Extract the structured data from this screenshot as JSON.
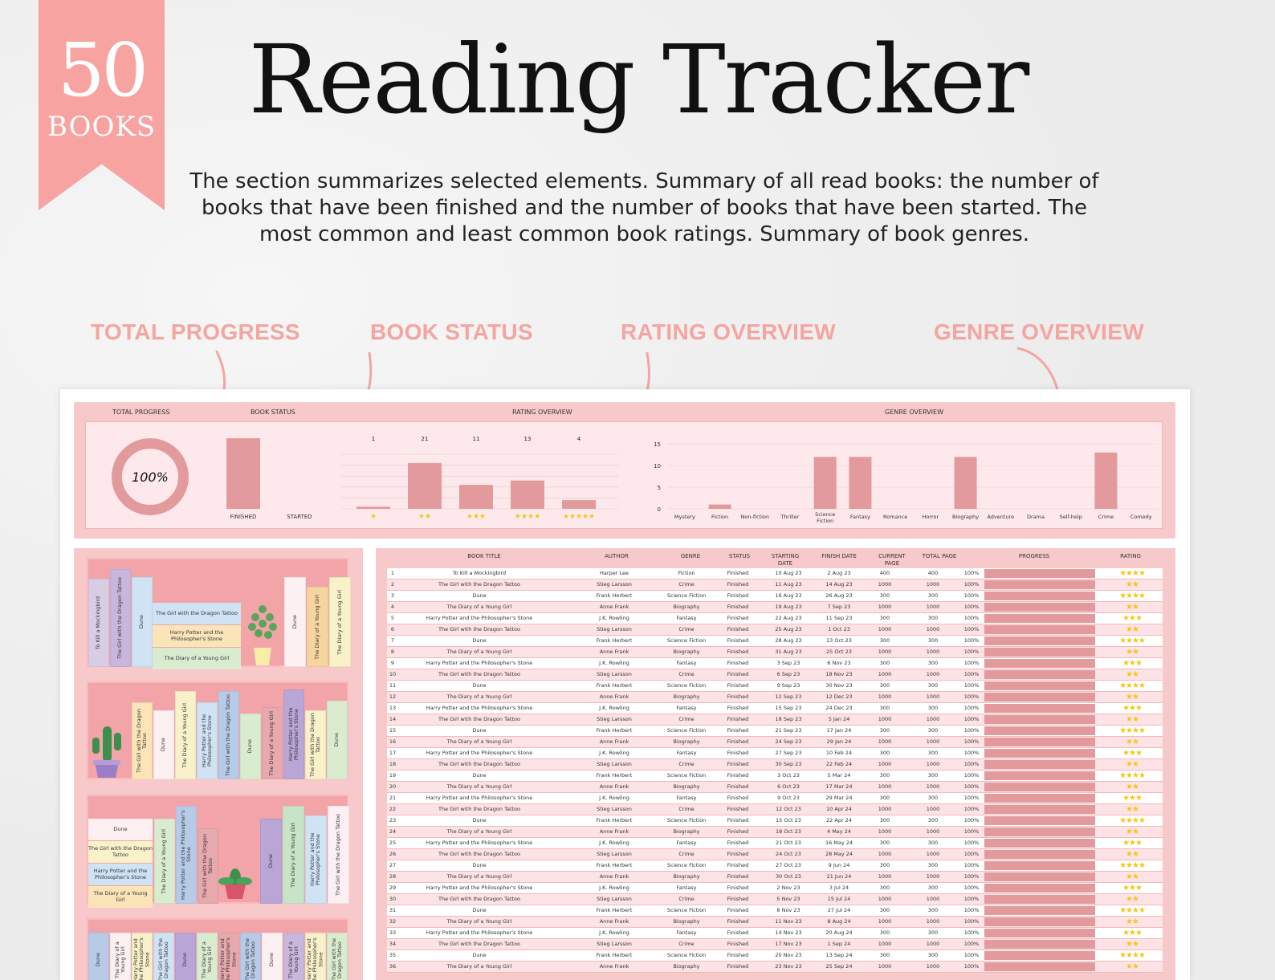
{
  "ribbon": {
    "number": "50",
    "label": "BOOKS"
  },
  "title": "Reading Tracker",
  "subtitle": "The section summarizes selected elements. Summary of all read books: the number of books that have been finished and the number of books that have been started. The most common and least common book ratings. Summary of book genres.",
  "callouts": {
    "total_progress": "TOTAL PROGRESS",
    "book_status": "BOOK STATUS",
    "rating_overview": "RATING OVERVIEW",
    "genre_overview": "GENRE OVERVIEW"
  },
  "dashboard": {
    "total_progress_label": "TOTAL PROGRESS",
    "book_status_label": "BOOK STATUS",
    "rating_overview_label": "RATING OVERVIEW",
    "genre_overview_label": "GENRE OVERVIEW",
    "progress_value": "100%",
    "colors": {
      "bar": "#e39a9c",
      "panel": "#f7c9cb",
      "inner": "#fde9ec",
      "accent": "#f7a3a1",
      "star": "#f5c518"
    }
  },
  "chart_data": [
    {
      "type": "bar",
      "categories": [
        "FINISHED",
        "STARTED"
      ],
      "values": [
        50,
        0
      ],
      "title": "BOOK STATUS"
    },
    {
      "type": "bar",
      "categories": [
        "★",
        "★★",
        "★★★",
        "★★★★",
        "★★★★★"
      ],
      "values": [
        1,
        21,
        11,
        13,
        4
      ],
      "data_labels": [
        "1",
        "21",
        "11",
        "13",
        "4"
      ],
      "title": "RATING OVERVIEW",
      "ylim": [
        0,
        25
      ]
    },
    {
      "type": "bar",
      "categories": [
        "Mystery",
        "Fiction",
        "Non-fiction",
        "Thriller",
        "Science Fiction",
        "Fantasy",
        "Romance",
        "Horror",
        "Biography",
        "Adventure",
        "Drama",
        "Self-help",
        "Crime",
        "Comedy"
      ],
      "values": [
        0,
        1,
        0,
        0,
        12,
        12,
        0,
        0,
        12,
        0,
        0,
        0,
        13,
        0
      ],
      "yticks": [
        "15",
        "10",
        "5",
        "0"
      ],
      "title": "GENRE OVERVIEW",
      "ylim": [
        0,
        15
      ],
      "grid": true
    }
  ],
  "table": {
    "headers": {
      "title": "BOOK TITLE",
      "author": "AUTHOR",
      "genre": "GENRE",
      "status": "STATUS",
      "start": "STARTING DATE",
      "finish": "FINISH DATE",
      "current": "CURRENT PAGE",
      "total": "TOTAL PAGE",
      "progress": "PROGRESS",
      "rating": "RATING"
    },
    "rows": [
      {
        "n": "1",
        "title": "To Kill a Mockingbird",
        "author": "Harper Lee",
        "genre": "Fiction",
        "status": "Finished",
        "start": "10 Aug 23",
        "finish": "2 Aug 23",
        "current": "400",
        "total": "400",
        "pct": "100%",
        "stars": "★★★★"
      },
      {
        "n": "2",
        "title": "The Girl with the Dragon Tattoo",
        "author": "Stieg Larsson",
        "genre": "Crime",
        "status": "Finished",
        "start": "11 Aug 23",
        "finish": "14 Aug 23",
        "current": "1000",
        "total": "1000",
        "pct": "100%",
        "stars": "★★"
      },
      {
        "n": "3",
        "title": "Dune",
        "author": "Frank Herbert",
        "genre": "Science Fiction",
        "status": "Finished",
        "start": "16 Aug 23",
        "finish": "26 Aug 23",
        "current": "300",
        "total": "300",
        "pct": "100%",
        "stars": "★★★★"
      },
      {
        "n": "4",
        "title": "The Diary of a Young Girl",
        "author": "Anne Frank",
        "genre": "Biography",
        "status": "Finished",
        "start": "19 Aug 23",
        "finish": "7 Sep 23",
        "current": "1000",
        "total": "1000",
        "pct": "100%",
        "stars": "★★"
      },
      {
        "n": "5",
        "title": "Harry Potter and the Philosopher's Stone",
        "author": "J.K. Rowling",
        "genre": "Fantasy",
        "status": "Finished",
        "start": "22 Aug 23",
        "finish": "11 Sep 23",
        "current": "300",
        "total": "300",
        "pct": "100%",
        "stars": "★★★"
      },
      {
        "n": "6",
        "title": "The Girl with the Dragon Tattoo",
        "author": "Stieg Larsson",
        "genre": "Crime",
        "status": "Finished",
        "start": "25 Aug 23",
        "finish": "1 Oct 23",
        "current": "1000",
        "total": "1000",
        "pct": "100%",
        "stars": "★★"
      },
      {
        "n": "7",
        "title": "Dune",
        "author": "Frank Herbert",
        "genre": "Science Fiction",
        "status": "Finished",
        "start": "28 Aug 23",
        "finish": "13 Oct 23",
        "current": "300",
        "total": "300",
        "pct": "100%",
        "stars": "★★★★"
      },
      {
        "n": "8",
        "title": "The Diary of a Young Girl",
        "author": "Anne Frank",
        "genre": "Biography",
        "status": "Finished",
        "start": "31 Aug 23",
        "finish": "25 Oct 23",
        "current": "1000",
        "total": "1000",
        "pct": "100%",
        "stars": "★★"
      },
      {
        "n": "9",
        "title": "Harry Potter and the Philosopher's Stone",
        "author": "J.K. Rowling",
        "genre": "Fantasy",
        "status": "Finished",
        "start": "3 Sep 23",
        "finish": "6 Nov 23",
        "current": "300",
        "total": "300",
        "pct": "100%",
        "stars": "★★★"
      },
      {
        "n": "10",
        "title": "The Girl with the Dragon Tattoo",
        "author": "Stieg Larsson",
        "genre": "Crime",
        "status": "Finished",
        "start": "6 Sep 23",
        "finish": "18 Nov 23",
        "current": "1000",
        "total": "1000",
        "pct": "100%",
        "stars": "★★"
      },
      {
        "n": "11",
        "title": "Dune",
        "author": "Frank Herbert",
        "genre": "Science Fiction",
        "status": "Finished",
        "start": "9 Sep 23",
        "finish": "30 Nov 23",
        "current": "300",
        "total": "300",
        "pct": "100%",
        "stars": "★★★★"
      },
      {
        "n": "12",
        "title": "The Diary of a Young Girl",
        "author": "Anne Frank",
        "genre": "Biography",
        "status": "Finished",
        "start": "12 Sep 23",
        "finish": "12 Dec 23",
        "current": "1000",
        "total": "1000",
        "pct": "100%",
        "stars": "★★"
      },
      {
        "n": "13",
        "title": "Harry Potter and the Philosopher's Stone",
        "author": "J.K. Rowling",
        "genre": "Fantasy",
        "status": "Finished",
        "start": "15 Sep 23",
        "finish": "24 Dec 23",
        "current": "300",
        "total": "300",
        "pct": "100%",
        "stars": "★★★"
      },
      {
        "n": "14",
        "title": "The Girl with the Dragon Tattoo",
        "author": "Stieg Larsson",
        "genre": "Crime",
        "status": "Finished",
        "start": "18 Sep 23",
        "finish": "5 Jan 24",
        "current": "1000",
        "total": "1000",
        "pct": "100%",
        "stars": "★★"
      },
      {
        "n": "15",
        "title": "Dune",
        "author": "Frank Herbert",
        "genre": "Science Fiction",
        "status": "Finished",
        "start": "21 Sep 23",
        "finish": "17 Jan 24",
        "current": "300",
        "total": "300",
        "pct": "100%",
        "stars": "★★★★"
      },
      {
        "n": "16",
        "title": "The Diary of a Young Girl",
        "author": "Anne Frank",
        "genre": "Biography",
        "status": "Finished",
        "start": "24 Sep 23",
        "finish": "29 Jan 24",
        "current": "1000",
        "total": "1000",
        "pct": "100%",
        "stars": "★★"
      },
      {
        "n": "17",
        "title": "Harry Potter and the Philosopher's Stone",
        "author": "J.K. Rowling",
        "genre": "Fantasy",
        "status": "Finished",
        "start": "27 Sep 23",
        "finish": "10 Feb 24",
        "current": "300",
        "total": "300",
        "pct": "100%",
        "stars": "★★★"
      },
      {
        "n": "18",
        "title": "The Girl with the Dragon Tattoo",
        "author": "Stieg Larsson",
        "genre": "Crime",
        "status": "Finished",
        "start": "30 Sep 23",
        "finish": "22 Feb 24",
        "current": "1000",
        "total": "1000",
        "pct": "100%",
        "stars": "★★"
      },
      {
        "n": "19",
        "title": "Dune",
        "author": "Frank Herbert",
        "genre": "Science Fiction",
        "status": "Finished",
        "start": "3 Oct 23",
        "finish": "5 Mar 24",
        "current": "300",
        "total": "300",
        "pct": "100%",
        "stars": "★★★★"
      },
      {
        "n": "20",
        "title": "The Diary of a Young Girl",
        "author": "Anne Frank",
        "genre": "Biography",
        "status": "Finished",
        "start": "6 Oct 23",
        "finish": "17 Mar 24",
        "current": "1000",
        "total": "1000",
        "pct": "100%",
        "stars": "★★"
      },
      {
        "n": "21",
        "title": "Harry Potter and the Philosopher's Stone",
        "author": "J.K. Rowling",
        "genre": "Fantasy",
        "status": "Finished",
        "start": "9 Oct 23",
        "finish": "29 Mar 24",
        "current": "300",
        "total": "300",
        "pct": "100%",
        "stars": "★★★"
      },
      {
        "n": "22",
        "title": "The Girl with the Dragon Tattoo",
        "author": "Stieg Larsson",
        "genre": "Crime",
        "status": "Finished",
        "start": "12 Oct 23",
        "finish": "10 Apr 24",
        "current": "1000",
        "total": "1000",
        "pct": "100%",
        "stars": "★★"
      },
      {
        "n": "23",
        "title": "Dune",
        "author": "Frank Herbert",
        "genre": "Science Fiction",
        "status": "Finished",
        "start": "15 Oct 23",
        "finish": "22 Apr 24",
        "current": "300",
        "total": "300",
        "pct": "100%",
        "stars": "★★★★"
      },
      {
        "n": "24",
        "title": "The Diary of a Young Girl",
        "author": "Anne Frank",
        "genre": "Biography",
        "status": "Finished",
        "start": "18 Oct 23",
        "finish": "4 May 24",
        "current": "1000",
        "total": "1000",
        "pct": "100%",
        "stars": "★★"
      },
      {
        "n": "25",
        "title": "Harry Potter and the Philosopher's Stone",
        "author": "J.K. Rowling",
        "genre": "Fantasy",
        "status": "Finished",
        "start": "21 Oct 23",
        "finish": "16 May 24",
        "current": "300",
        "total": "300",
        "pct": "100%",
        "stars": "★★★"
      },
      {
        "n": "26",
        "title": "The Girl with the Dragon Tattoo",
        "author": "Stieg Larsson",
        "genre": "Crime",
        "status": "Finished",
        "start": "24 Oct 23",
        "finish": "28 May 24",
        "current": "1000",
        "total": "1000",
        "pct": "100%",
        "stars": "★★"
      },
      {
        "n": "27",
        "title": "Dune",
        "author": "Frank Herbert",
        "genre": "Science Fiction",
        "status": "Finished",
        "start": "27 Oct 23",
        "finish": "9 Jun 24",
        "current": "300",
        "total": "300",
        "pct": "100%",
        "stars": "★★★★"
      },
      {
        "n": "28",
        "title": "The Diary of a Young Girl",
        "author": "Anne Frank",
        "genre": "Biography",
        "status": "Finished",
        "start": "30 Oct 23",
        "finish": "21 Jun 24",
        "current": "1000",
        "total": "1000",
        "pct": "100%",
        "stars": "★★"
      },
      {
        "n": "29",
        "title": "Harry Potter and the Philosopher's Stone",
        "author": "J.K. Rowling",
        "genre": "Fantasy",
        "status": "Finished",
        "start": "2 Nov 23",
        "finish": "3 Jul 24",
        "current": "300",
        "total": "300",
        "pct": "100%",
        "stars": "★★★"
      },
      {
        "n": "30",
        "title": "The Girl with the Dragon Tattoo",
        "author": "Stieg Larsson",
        "genre": "Crime",
        "status": "Finished",
        "start": "5 Nov 23",
        "finish": "15 Jul 24",
        "current": "1000",
        "total": "1000",
        "pct": "100%",
        "stars": "★★"
      },
      {
        "n": "31",
        "title": "Dune",
        "author": "Frank Herbert",
        "genre": "Science Fiction",
        "status": "Finished",
        "start": "8 Nov 23",
        "finish": "27 Jul 24",
        "current": "300",
        "total": "300",
        "pct": "100%",
        "stars": "★★★★"
      },
      {
        "n": "32",
        "title": "The Diary of a Young Girl",
        "author": "Anne Frank",
        "genre": "Biography",
        "status": "Finished",
        "start": "11 Nov 23",
        "finish": "8 Aug 24",
        "current": "1000",
        "total": "1000",
        "pct": "100%",
        "stars": "★★"
      },
      {
        "n": "33",
        "title": "Harry Potter and the Philosopher's Stone",
        "author": "J.K. Rowling",
        "genre": "Fantasy",
        "status": "Finished",
        "start": "14 Nov 23",
        "finish": "20 Aug 24",
        "current": "300",
        "total": "300",
        "pct": "100%",
        "stars": "★★★"
      },
      {
        "n": "34",
        "title": "The Girl with the Dragon Tattoo",
        "author": "Stieg Larsson",
        "genre": "Crime",
        "status": "Finished",
        "start": "17 Nov 23",
        "finish": "1 Sep 24",
        "current": "1000",
        "total": "1000",
        "pct": "100%",
        "stars": "★★"
      },
      {
        "n": "35",
        "title": "Dune",
        "author": "Frank Herbert",
        "genre": "Science Fiction",
        "status": "Finished",
        "start": "20 Nov 23",
        "finish": "13 Sep 24",
        "current": "300",
        "total": "300",
        "pct": "100%",
        "stars": "★★★★"
      },
      {
        "n": "36",
        "title": "The Diary of a Young Girl",
        "author": "Anne Frank",
        "genre": "Biography",
        "status": "Finished",
        "start": "23 Nov 23",
        "finish": "25 Sep 24",
        "current": "1000",
        "total": "1000",
        "pct": "100%",
        "stars": "★★"
      }
    ]
  },
  "shelves": [
    {
      "books": [
        {
          "t": "To Kill a Mockingbird",
          "c": "#d9cde6"
        },
        {
          "t": "The Girl with the Dragon Tattoo",
          "c": "#c8b6dc"
        },
        {
          "t": "Dune",
          "c": "#cfe3f5"
        }
      ],
      "stack": [
        {
          "t": "The Girl with the Dragon Tattoo",
          "c": "#cfe3f5"
        },
        {
          "t": "Harry Potter and the Philosopher's Stone",
          "c": "#fbe4b8"
        },
        {
          "t": "The Diary of a Young Girl",
          "c": "#d9ecd0"
        }
      ],
      "right": [
        {
          "t": "Dune",
          "c": "#fdf0f2"
        },
        {
          "t": "The Diary of a Young Girl",
          "c": "#f6d59f"
        },
        {
          "t": "The Diary of a Young Girl",
          "c": "#f9f1c9"
        }
      ]
    },
    {
      "books": [
        {
          "t": "The Girl with the Dragon Tattoo",
          "c": "#fbe4b8"
        },
        {
          "t": "Dune",
          "c": "#fdf0f2"
        },
        {
          "t": "The Diary of a Young Girl",
          "c": "#f9f1c9"
        },
        {
          "t": "Harry Potter and the Philosopher's Stone",
          "c": "#cfe3f5"
        },
        {
          "t": "The Girl with the Dragon Tattoo",
          "c": "#b7cbe8"
        },
        {
          "t": "Dune",
          "c": "#d9ecd0"
        },
        {
          "t": "The Diary of a Young Girl",
          "c": "#e7a9ad"
        },
        {
          "t": "Harry Potter and the Philosopher's Stone",
          "c": "#b9a5d6"
        },
        {
          "t": "The Girl with the Dragon Tattoo",
          "c": "#f9f1c9"
        },
        {
          "t": "Dune",
          "c": "#d9ecd0"
        }
      ]
    },
    {
      "stack": [
        {
          "t": "Dune",
          "c": "#fdf0f2"
        },
        {
          "t": "The Girl with the Dragon Tattoo",
          "c": "#f9f1c9"
        },
        {
          "t": "Harry Potter and the Philosopher's Stone",
          "c": "#cfe3f5"
        },
        {
          "t": "The Diary of a Young Girl",
          "c": "#fbe4b8"
        }
      ],
      "books": [
        {
          "t": "The Diary of a Young Girl",
          "c": "#d9ecd0"
        },
        {
          "t": "Harry Potter and the Philosopher's Stone",
          "c": "#b7cbe8"
        },
        {
          "t": "The Girl with the Dragon Tattoo",
          "c": "#e7a9ad"
        },
        {
          "t": "Dune",
          "c": "#b9a5d6"
        },
        {
          "t": "The Diary of a Young Girl",
          "c": "#c7e4c8"
        },
        {
          "t": "Harry Potter and the Philosopher's Stone",
          "c": "#cfe3f5"
        },
        {
          "t": "The Girl with the Dragon Tattoo",
          "c": "#fdf0f2"
        }
      ]
    },
    {
      "books": [
        {
          "t": "Dune",
          "c": "#b7cbe8"
        },
        {
          "t": "The Diary of a Young Girl",
          "c": "#fdf0f2"
        },
        {
          "t": "Harry Potter and the Philosopher's Stone",
          "c": "#f9f1c9"
        },
        {
          "t": "The Girl with the Dragon Tattoo",
          "c": "#cfe3f5"
        },
        {
          "t": "Dune",
          "c": "#b9a5d6"
        },
        {
          "t": "The Diary of a Young Girl",
          "c": "#d9ecd0"
        },
        {
          "t": "Harry Potter and the Philosopher's Stone",
          "c": "#e7a9ad"
        },
        {
          "t": "The Girl with the Dragon Tattoo",
          "c": "#b7cbe8"
        },
        {
          "t": "Dune",
          "c": "#fdf0f2"
        },
        {
          "t": "The Diary of a Young Girl",
          "c": "#c8b6dc"
        },
        {
          "t": "Harry Potter and the Philosopher's Stone",
          "c": "#f9f1c9"
        },
        {
          "t": "The Girl with the Dragon Tattoo",
          "c": "#d9ecd0"
        }
      ]
    }
  ]
}
